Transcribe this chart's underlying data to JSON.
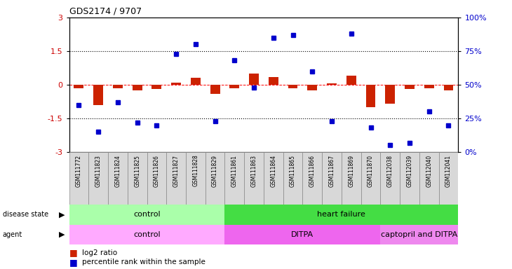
{
  "title": "GDS2174 / 9707",
  "samples": [
    "GSM111772",
    "GSM111823",
    "GSM111824",
    "GSM111825",
    "GSM111826",
    "GSM111827",
    "GSM111828",
    "GSM111829",
    "GSM111861",
    "GSM111863",
    "GSM111864",
    "GSM111865",
    "GSM111866",
    "GSM111867",
    "GSM111869",
    "GSM111870",
    "GSM112038",
    "GSM112039",
    "GSM112040",
    "GSM112041"
  ],
  "log2_ratio": [
    -0.15,
    -0.9,
    -0.15,
    -0.25,
    -0.2,
    0.1,
    0.3,
    -0.4,
    -0.15,
    0.5,
    0.35,
    -0.15,
    -0.25,
    0.05,
    0.4,
    -1.0,
    -0.85,
    -0.2,
    -0.15,
    -0.25
  ],
  "percentile_rank": [
    35,
    15,
    37,
    22,
    20,
    73,
    80,
    23,
    68,
    48,
    85,
    87,
    60,
    23,
    88,
    18,
    5,
    7,
    30,
    20
  ],
  "disease_state_groups": [
    {
      "label": "control",
      "start": 0,
      "end": 8,
      "color": "#aaffaa"
    },
    {
      "label": "heart failure",
      "start": 8,
      "end": 20,
      "color": "#44dd44"
    }
  ],
  "agent_groups": [
    {
      "label": "control",
      "start": 0,
      "end": 8,
      "color": "#ffaaff"
    },
    {
      "label": "DITPA",
      "start": 8,
      "end": 16,
      "color": "#ee66ee"
    },
    {
      "label": "captopril and DITPA",
      "start": 16,
      "end": 20,
      "color": "#ee88ee"
    }
  ],
  "ylim_left": [
    -3,
    3
  ],
  "ylim_right": [
    0,
    100
  ],
  "bar_color": "#cc2200",
  "dot_color": "#0000cc",
  "background_color": "#ffffff",
  "label_color_left": "#cc0000",
  "label_color_right": "#0000cc"
}
